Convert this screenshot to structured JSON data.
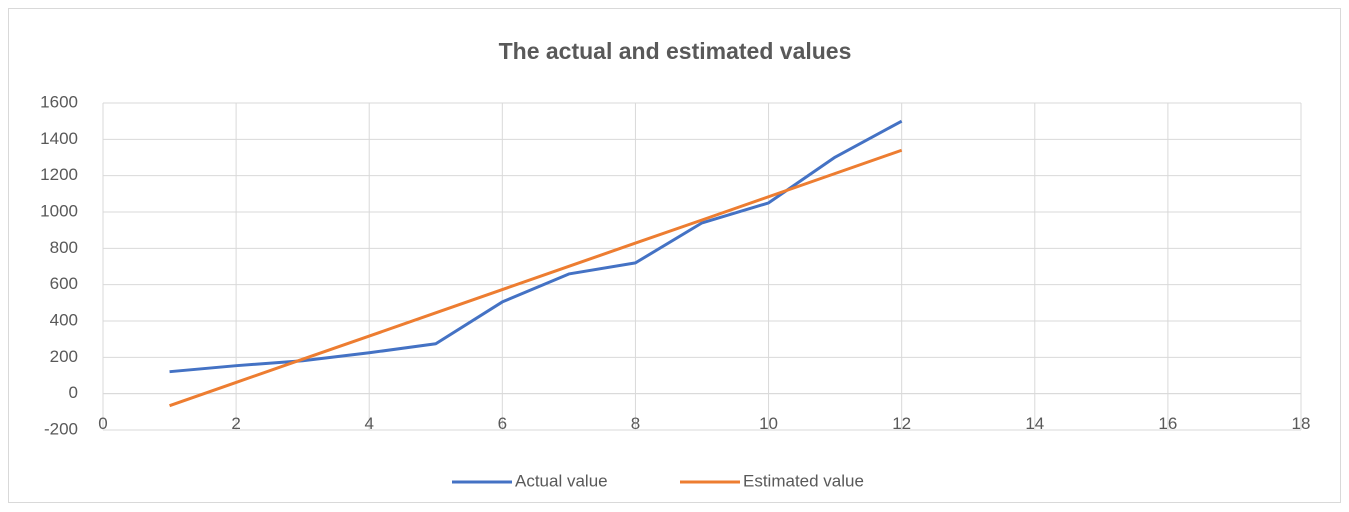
{
  "chart_data": {
    "type": "line",
    "title": "The actual and estimated values",
    "x": [
      1,
      2,
      3,
      4,
      5,
      6,
      7,
      8,
      9,
      10,
      11,
      12
    ],
    "series": [
      {
        "name": "Actual value",
        "color": "#4472c4",
        "values": [
          121,
          154,
          181,
          225,
          275,
          505,
          659,
          720,
          940,
          1050,
          1302,
          1500
        ]
      },
      {
        "name": "Estimated value",
        "color": "#ed7d31",
        "values": [
          -66,
          62,
          190,
          317,
          445,
          573,
          701,
          829,
          956,
          1084,
          1212,
          1340
        ]
      }
    ],
    "xlim": [
      0,
      18
    ],
    "xticks": [
      0,
      2,
      4,
      6,
      8,
      10,
      12,
      14,
      16,
      18
    ],
    "ylim": [
      -200,
      1600
    ],
    "yticks": [
      -200,
      0,
      200,
      400,
      600,
      800,
      1000,
      1200,
      1400,
      1600
    ],
    "grid": true,
    "legend": "bottom"
  }
}
